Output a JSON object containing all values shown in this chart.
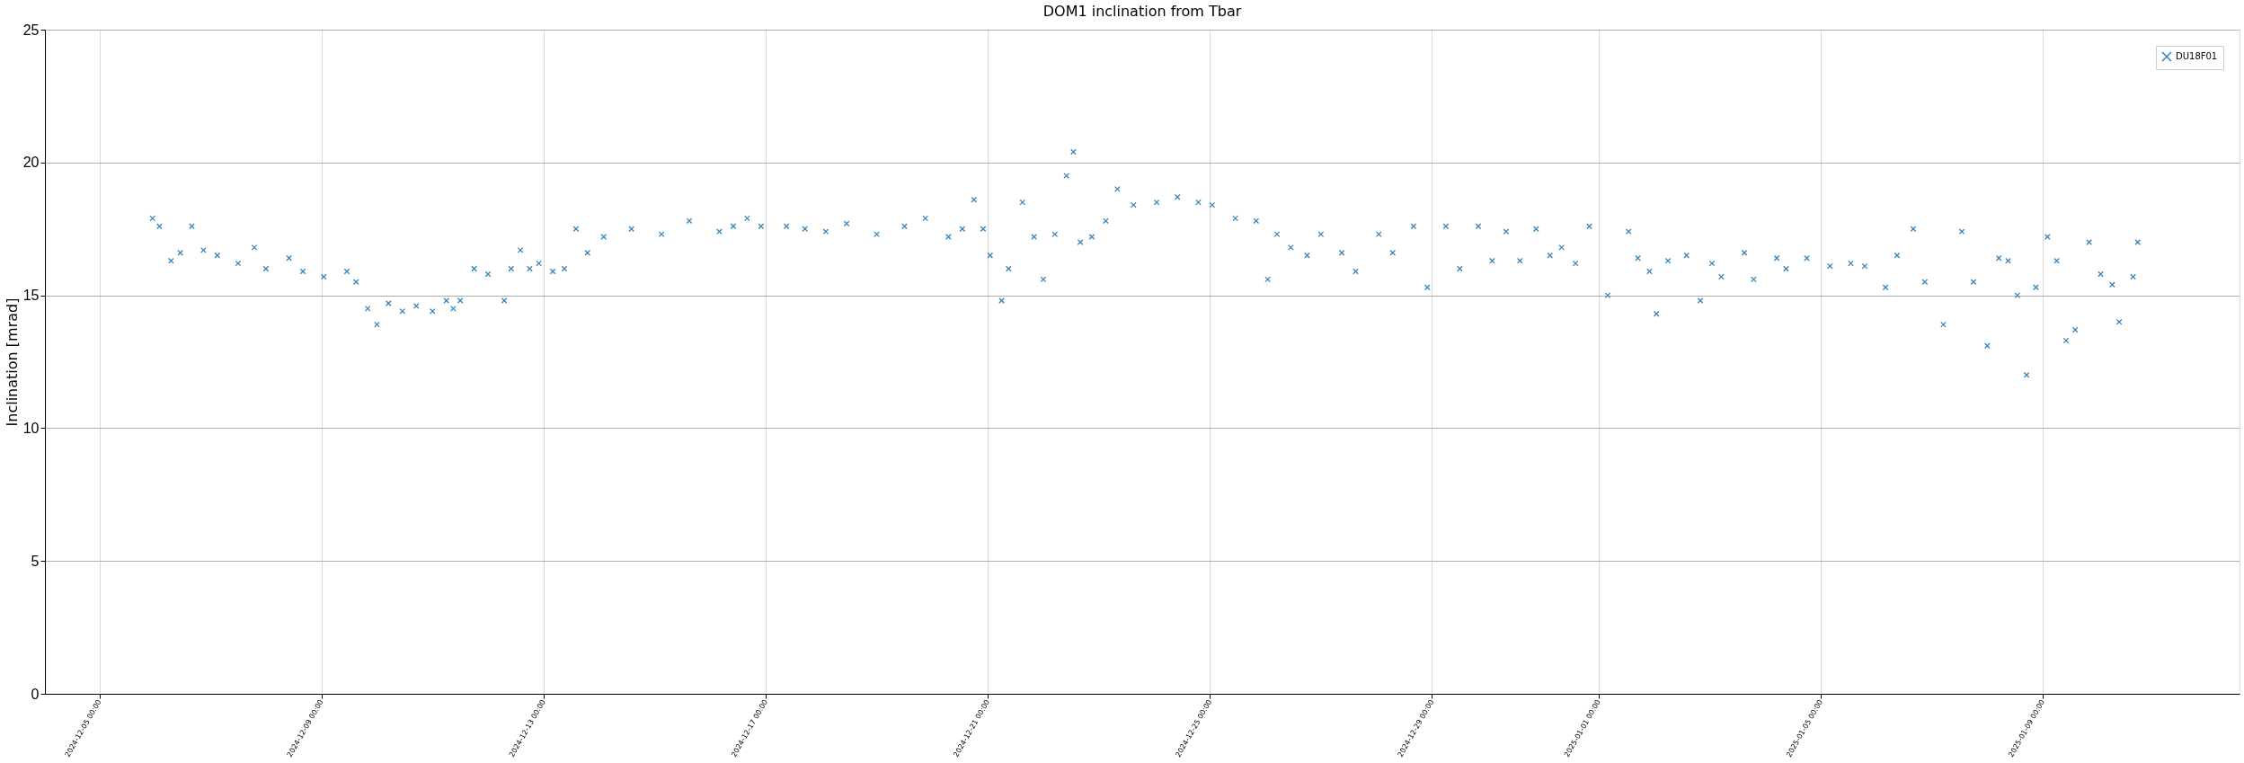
{
  "chart_data": {
    "type": "scatter",
    "title": "DOM1 inclination from Tbar",
    "ylabel": "Inclination [mrad]",
    "x": [
      "2024-12-05T23:00",
      "2024-12-06T02:00",
      "2024-12-06T07:00",
      "2024-12-06T11:00",
      "2024-12-06T16:00",
      "2024-12-06T21:00",
      "2024-12-07T03:00",
      "2024-12-07T12:00",
      "2024-12-07T19:00",
      "2024-12-08T00:00",
      "2024-12-08T10:00",
      "2024-12-08T16:00",
      "2024-12-09T01:00",
      "2024-12-09T11:00",
      "2024-12-09T15:00",
      "2024-12-09T20:00",
      "2024-12-10T00:00",
      "2024-12-10T05:00",
      "2024-12-10T11:00",
      "2024-12-10T17:00",
      "2024-12-11T00:00",
      "2024-12-11T06:00",
      "2024-12-11T09:00",
      "2024-12-11T12:00",
      "2024-12-11T18:00",
      "2024-12-12T00:00",
      "2024-12-12T07:00",
      "2024-12-12T10:00",
      "2024-12-12T14:00",
      "2024-12-12T18:00",
      "2024-12-12T22:00",
      "2024-12-13T04:00",
      "2024-12-13T09:00",
      "2024-12-13T14:00",
      "2024-12-13T19:00",
      "2024-12-14T02:00",
      "2024-12-14T14:00",
      "2024-12-15T03:00",
      "2024-12-15T15:00",
      "2024-12-16T04:00",
      "2024-12-16T10:00",
      "2024-12-16T16:00",
      "2024-12-16T22:00",
      "2024-12-17T09:00",
      "2024-12-17T17:00",
      "2024-12-18T02:00",
      "2024-12-18T11:00",
      "2024-12-19T00:00",
      "2024-12-19T12:00",
      "2024-12-19T21:00",
      "2024-12-20T07:00",
      "2024-12-20T13:00",
      "2024-12-20T18:00",
      "2024-12-20T22:00",
      "2024-12-21T01:00",
      "2024-12-21T06:00",
      "2024-12-21T09:00",
      "2024-12-21T15:00",
      "2024-12-21T20:00",
      "2024-12-22T00:00",
      "2024-12-22T05:00",
      "2024-12-22T10:00",
      "2024-12-22T13:00",
      "2024-12-22T16:00",
      "2024-12-22T21:00",
      "2024-12-23T03:00",
      "2024-12-23T08:00",
      "2024-12-23T15:00",
      "2024-12-24T01:00",
      "2024-12-24T10:00",
      "2024-12-24T19:00",
      "2024-12-25T01:00",
      "2024-12-25T11:00",
      "2024-12-25T20:00",
      "2024-12-26T01:00",
      "2024-12-26T05:00",
      "2024-12-26T11:00",
      "2024-12-26T18:00",
      "2024-12-27T00:00",
      "2024-12-27T09:00",
      "2024-12-27T15:00",
      "2024-12-28T01:00",
      "2024-12-28T07:00",
      "2024-12-28T16:00",
      "2024-12-28T22:00",
      "2024-12-29T06:00",
      "2024-12-29T12:00",
      "2024-12-29T20:00",
      "2024-12-30T02:00",
      "2024-12-30T08:00",
      "2024-12-30T14:00",
      "2024-12-30T21:00",
      "2024-12-31T03:00",
      "2024-12-31T08:00",
      "2024-12-31T14:00",
      "2024-12-31T20:00",
      "2025-01-01T04:00",
      "2025-01-01T13:00",
      "2025-01-01T17:00",
      "2025-01-01T22:00",
      "2025-01-02T01:00",
      "2025-01-02T06:00",
      "2025-01-02T14:00",
      "2025-01-02T20:00",
      "2025-01-03T01:00",
      "2025-01-03T05:00",
      "2025-01-03T15:00",
      "2025-01-03T19:00",
      "2025-01-04T05:00",
      "2025-01-04T09:00",
      "2025-01-04T18:00",
      "2025-01-05T04:00",
      "2025-01-05T13:00",
      "2025-01-05T19:00",
      "2025-01-06T04:00",
      "2025-01-06T09:00",
      "2025-01-06T16:00",
      "2025-01-06T21:00",
      "2025-01-07T05:00",
      "2025-01-07T13:00",
      "2025-01-07T18:00",
      "2025-01-08T00:00",
      "2025-01-08T05:00",
      "2025-01-08T09:00",
      "2025-01-08T13:00",
      "2025-01-08T17:00",
      "2025-01-08T21:00",
      "2025-01-09T02:00",
      "2025-01-09T06:00",
      "2025-01-09T10:00",
      "2025-01-09T14:00",
      "2025-01-09T20:00",
      "2025-01-10T01:00",
      "2025-01-10T06:00",
      "2025-01-10T09:00",
      "2025-01-10T15:00",
      "2025-01-10T17:00"
    ],
    "series": [
      {
        "name": "DU18F01",
        "color": "#1f77b4",
        "values": [
          17.9,
          17.6,
          16.3,
          16.6,
          17.6,
          16.7,
          16.5,
          16.2,
          16.8,
          16.0,
          16.4,
          15.9,
          15.7,
          15.9,
          15.5,
          14.5,
          13.9,
          14.7,
          14.4,
          14.6,
          14.4,
          14.8,
          14.5,
          14.8,
          16.0,
          15.8,
          14.8,
          16.0,
          16.7,
          16.0,
          16.2,
          15.9,
          16.0,
          17.5,
          16.6,
          17.2,
          17.5,
          17.3,
          17.8,
          17.4,
          17.6,
          17.9,
          17.6,
          17.6,
          17.5,
          17.4,
          17.7,
          17.3,
          17.6,
          17.9,
          17.2,
          17.5,
          18.6,
          17.5,
          16.5,
          14.8,
          16.0,
          18.5,
          17.2,
          15.6,
          17.3,
          19.5,
          20.4,
          17.0,
          17.2,
          17.8,
          19.0,
          18.4,
          18.5,
          18.7,
          18.5,
          18.4,
          17.9,
          17.8,
          15.6,
          17.3,
          16.8,
          16.5,
          17.3,
          16.6,
          15.9,
          17.3,
          16.6,
          17.6,
          15.3,
          17.6,
          16.0,
          17.6,
          16.3,
          17.4,
          16.3,
          17.5,
          16.5,
          16.8,
          16.2,
          17.6,
          15.0,
          17.4,
          16.4,
          15.9,
          14.3,
          16.3,
          16.5,
          14.8,
          16.2,
          15.7,
          16.6,
          15.6,
          16.4,
          16.0,
          16.4,
          16.1,
          16.2,
          16.1,
          15.3,
          16.5,
          17.5,
          15.5,
          13.9,
          17.4,
          15.5,
          13.1,
          16.4,
          16.3,
          15.0,
          12.0,
          15.3,
          17.2,
          16.3,
          13.3,
          13.7,
          17.0,
          15.8,
          15.4,
          14.0,
          15.7,
          17.0
        ]
      }
    ],
    "xlim": [
      "2024-12-04T00:30",
      "2025-01-12T13:00"
    ],
    "xticks": [
      {
        "value": "2024-12-05",
        "label": "2024-12-05 00:00"
      },
      {
        "value": "2024-12-09",
        "label": "2024-12-09 00:00"
      },
      {
        "value": "2024-12-13",
        "label": "2024-12-13 00:00"
      },
      {
        "value": "2024-12-17",
        "label": "2024-12-17 00:00"
      },
      {
        "value": "2024-12-21",
        "label": "2024-12-21 00:00"
      },
      {
        "value": "2024-12-25",
        "label": "2024-12-25 00:00"
      },
      {
        "value": "2024-12-29",
        "label": "2024-12-29 00:00"
      },
      {
        "value": "2025-01-01",
        "label": "2025-01-01 00:00"
      },
      {
        "value": "2025-01-05",
        "label": "2025-01-05 00:00"
      },
      {
        "value": "2025-01-09",
        "label": "2025-01-09 00:00"
      }
    ],
    "ylim": [
      0,
      25
    ],
    "yticks": [
      0,
      5,
      10,
      15,
      20,
      25
    ],
    "grid": true,
    "legend": "top right",
    "marker": "cross"
  }
}
